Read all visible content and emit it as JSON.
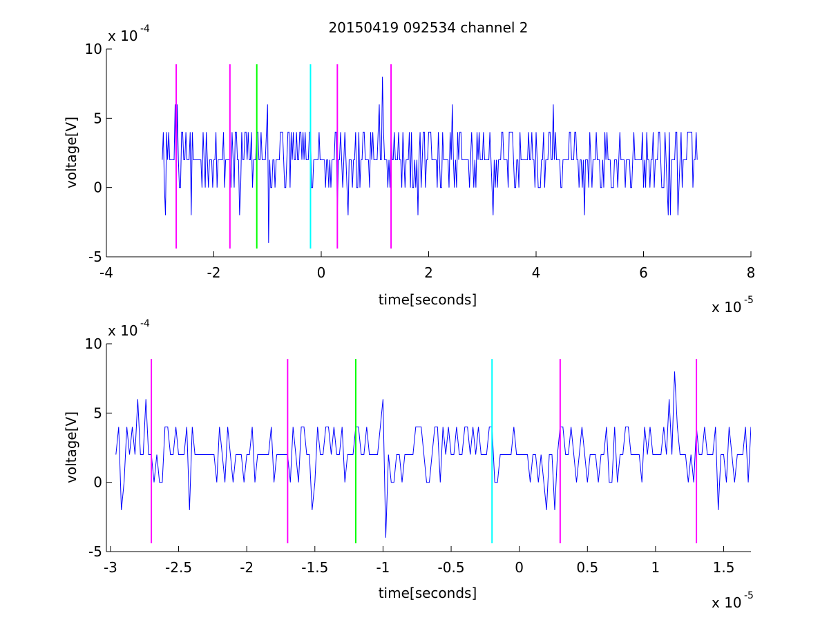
{
  "figure": {
    "title": "20150419 092534 channel 2"
  },
  "chart_data": [
    {
      "type": "line",
      "panel": "top",
      "xlabel": "time[seconds]",
      "ylabel": "voltage[V]",
      "x_multiplier_label": "x 10",
      "x_multiplier_exponent": "-5",
      "y_multiplier_label": "x 10",
      "y_multiplier_exponent": "-4",
      "xlim": [
        -4,
        8
      ],
      "ylim": [
        -5,
        10
      ],
      "xticks": [
        "-4",
        "-2",
        "0",
        "2",
        "4",
        "6",
        "8"
      ],
      "yticks": [
        "-5",
        "0",
        "5",
        "10"
      ],
      "grid": false,
      "series": [
        {
          "color": "#0000ff",
          "x_range": [
            -2.96,
            7.0
          ],
          "sample_step": 0.02,
          "baseline": 2,
          "levels": [
            -4,
            -2,
            0,
            2,
            4,
            6,
            8
          ],
          "spikes": [
            {
              "x": -2.72,
              "y": 6
            },
            {
              "x": -2.68,
              "y": 6
            },
            {
              "x": -2.9,
              "y": -2
            },
            {
              "x": -2.42,
              "y": -2
            },
            {
              "x": -1.0,
              "y": 6
            },
            {
              "x": -0.98,
              "y": -4
            },
            {
              "x": -1.52,
              "y": -2
            },
            {
              "x": 1.14,
              "y": 8
            },
            {
              "x": 1.08,
              "y": 6
            },
            {
              "x": 2.44,
              "y": 6
            },
            {
              "x": 4.32,
              "y": 6
            },
            {
              "x": 0.3,
              "y": -2
            },
            {
              "x": 0.5,
              "y": -2
            },
            {
              "x": 1.8,
              "y": -2
            },
            {
              "x": 3.2,
              "y": -2
            },
            {
              "x": 4.9,
              "y": -2
            },
            {
              "x": 6.45,
              "y": -2
            },
            {
              "x": 6.5,
              "y": -2
            },
            {
              "x": 6.64,
              "y": -2
            }
          ]
        }
      ],
      "markers": [
        {
          "x": -2.7,
          "color": "#ff00ff"
        },
        {
          "x": -1.7,
          "color": "#ff00ff"
        },
        {
          "x": -1.2,
          "color": "#00ff00"
        },
        {
          "x": -0.2,
          "color": "#00ffff"
        },
        {
          "x": 0.3,
          "color": "#ff00ff"
        },
        {
          "x": 1.3,
          "color": "#ff00ff"
        }
      ],
      "marker_yrange": [
        -4.4,
        8.9
      ]
    },
    {
      "type": "line",
      "panel": "bottom",
      "xlabel": "time[seconds]",
      "ylabel": "voltage[V]",
      "x_multiplier_label": "x 10",
      "x_multiplier_exponent": "-5",
      "y_multiplier_label": "x 10",
      "y_multiplier_exponent": "-4",
      "xlim": [
        -3.03,
        1.7
      ],
      "ylim": [
        -5,
        10
      ],
      "xticks": [
        "-3",
        "-2.5",
        "-2",
        "-1.5",
        "-1",
        "-0.5",
        "0",
        "0.5",
        "1",
        "1.5"
      ],
      "xtick_values": [
        -3,
        -2.5,
        -2,
        -1.5,
        -1,
        -0.5,
        0,
        0.5,
        1,
        1.5
      ],
      "yticks": [
        "-5",
        "0",
        "5",
        "10"
      ],
      "grid": false,
      "series": [
        {
          "color": "#0000ff",
          "x_range": [
            -2.96,
            1.7
          ],
          "sample_step": 0.02,
          "baseline": 2,
          "levels": [
            -4,
            -2,
            0,
            2,
            4,
            6,
            8
          ],
          "spikes": [
            {
              "x": -2.92,
              "y": -2
            },
            {
              "x": -2.8,
              "y": 6
            },
            {
              "x": -2.74,
              "y": 6
            },
            {
              "x": -2.42,
              "y": -2
            },
            {
              "x": -1.52,
              "y": -2
            },
            {
              "x": -0.98,
              "y": -4
            },
            {
              "x": -1.0,
              "y": 6
            },
            {
              "x": 0.2,
              "y": -2
            },
            {
              "x": 0.26,
              "y": -2
            },
            {
              "x": 1.14,
              "y": 8
            },
            {
              "x": 1.1,
              "y": 6
            },
            {
              "x": 1.46,
              "y": -2
            }
          ]
        }
      ],
      "markers": [
        {
          "x": -2.7,
          "color": "#ff00ff"
        },
        {
          "x": -1.7,
          "color": "#ff00ff"
        },
        {
          "x": -1.2,
          "color": "#00ff00"
        },
        {
          "x": -0.2,
          "color": "#00ffff"
        },
        {
          "x": 0.3,
          "color": "#ff00ff"
        },
        {
          "x": 1.3,
          "color": "#ff00ff"
        }
      ],
      "marker_yrange": [
        -4.4,
        8.9
      ]
    }
  ]
}
